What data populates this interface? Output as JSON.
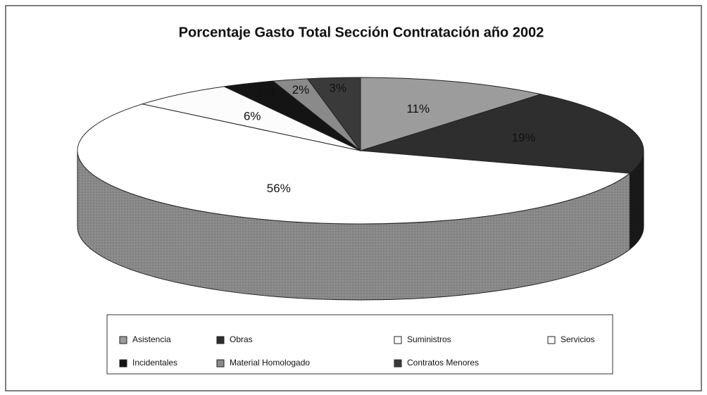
{
  "chart_data": {
    "type": "pie",
    "title": "Porcentaje Gasto Total Sección Contratación año 2002",
    "categories": [
      "Asistencia",
      "Obras",
      "Suministros",
      "Servicios",
      "Incidentales",
      "Material Homologado",
      "Contratos Menores"
    ],
    "values": [
      11,
      19,
      56,
      6,
      3,
      2,
      3
    ],
    "value_labels": [
      "11%",
      "19%",
      "56%",
      "6%",
      "3%",
      "2%",
      "3%"
    ],
    "colors": [
      "#9c9c9c",
      "#2e2e2e",
      "#ffffff",
      "#fcfcfc",
      "#141414",
      "#8a8a8a",
      "#3a3a3a"
    ],
    "legend": "bottom"
  }
}
